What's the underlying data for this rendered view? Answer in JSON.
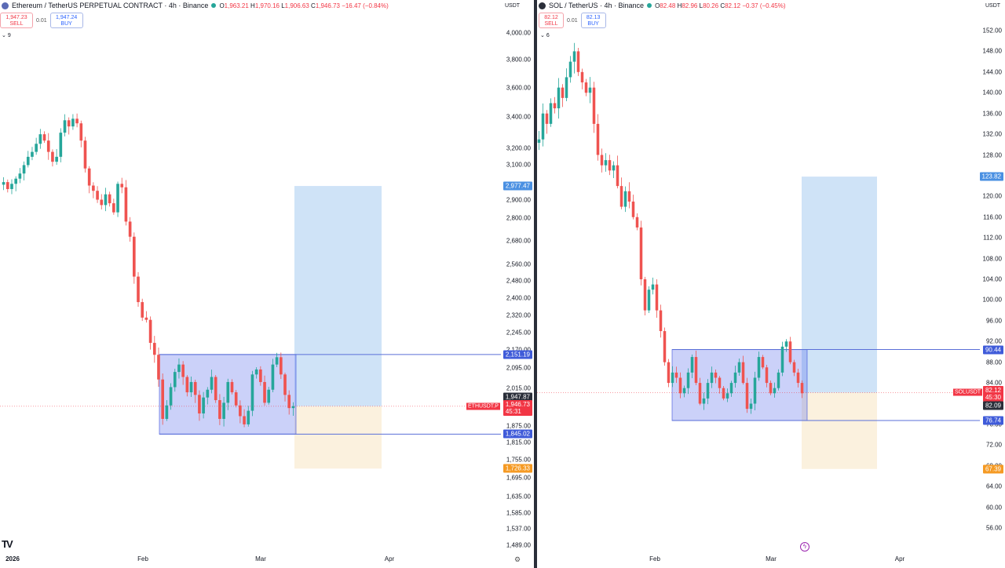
{
  "left": {
    "title": "Ethereum / TetherUS PERPETUAL CONTRACT · 4h · Binance",
    "ohlc": {
      "o_label": "O",
      "o": "1,963.21",
      "h_label": "H",
      "h": "1,970.16",
      "l_label": "L",
      "l": "1,906.63",
      "c_label": "C",
      "c": "1,946.73",
      "chg": "−16.47 (−0.84%)"
    },
    "sell_price": "1,947.23",
    "sell_label": "SELL",
    "buy_price": "1,947.24",
    "buy_label": "BUY",
    "spread": "0.01",
    "indicators_count": "9",
    "quote": "USDT",
    "symbol_tag": "ETHUSDT.P",
    "y_ticks": [
      "4,000.00",
      "3,800.00",
      "3,600.00",
      "3,400.00",
      "3,200.00",
      "3,100.00",
      "2,900.00",
      "2,800.00",
      "2,680.00",
      "2,560.00",
      "2,480.00",
      "2,400.00",
      "2,320.00",
      "2,245.00",
      "2,170.00",
      "2,095.00",
      "2,015.00",
      "1,875.00",
      "1,815.00",
      "1,755.00",
      "1,695.00",
      "1,635.00",
      "1,585.00",
      "1,537.00",
      "1,489.00"
    ],
    "x_ticks": [
      "2026",
      "Feb",
      "Mar",
      "Apr"
    ],
    "tags": {
      "target": "2,977.47",
      "range_high": "2,151.19",
      "last_upper": "1,947.87",
      "last": "1,946.73",
      "countdown": "45:31",
      "range_low": "1,845.02",
      "stop": "1,726.33"
    },
    "colors": {
      "target": "#4a90e2",
      "range": "#3f5bd9",
      "last": "#f23645",
      "dark": "#2a2e39",
      "stop": "#f59a23"
    },
    "chart_data": {
      "type": "candlestick",
      "series_close": [
        3000,
        2960,
        2990,
        3020,
        3050,
        3100,
        3150,
        3180,
        3230,
        3290,
        3250,
        3180,
        3120,
        3150,
        3300,
        3380,
        3340,
        3390,
        3360,
        3250,
        3080,
        2980,
        2950,
        2900,
        2870,
        2930,
        2880,
        2830,
        2990,
        2970,
        2780,
        2700,
        2500,
        2380,
        2310,
        2300,
        2200,
        2150,
        2050,
        1900,
        1950,
        2020,
        2080,
        2110,
        2060,
        2000,
        2040,
        1990,
        1920,
        1980,
        2010,
        2060,
        1970,
        1900,
        1960,
        2040,
        2000,
        1950,
        1910,
        1880,
        1930,
        2070,
        2090,
        2040,
        1960,
        2010,
        2110,
        2140,
        2070,
        1990,
        1940,
        1947
      ],
      "ylim": [
        1489,
        4000
      ],
      "range_box": {
        "top": 2151.19,
        "bottom": 1845.02
      },
      "target": 2977.47,
      "stop": 1726.33,
      "entry": 1946.73
    }
  },
  "right": {
    "title": "SOL / TetherUS · 4h · Binance",
    "ohlc": {
      "o_label": "O",
      "o": "82.48",
      "h_label": "H",
      "h": "82.96",
      "l_label": "L",
      "l": "80.26",
      "c_label": "C",
      "c": "82.12",
      "chg": "−0.37 (−0.45%)"
    },
    "sell_price": "82.12",
    "sell_label": "SELL",
    "buy_price": "82.13",
    "buy_label": "BUY",
    "spread": "0.01",
    "indicators_count": "6",
    "quote": "USDT",
    "symbol_tag": "SOLUSDT",
    "y_ticks": [
      "152.00",
      "148.00",
      "144.00",
      "140.00",
      "136.00",
      "132.00",
      "128.00",
      "124.00",
      "120.00",
      "116.00",
      "112.00",
      "108.00",
      "104.00",
      "100.00",
      "96.00",
      "92.00",
      "88.00",
      "84.00",
      "80.00",
      "76.00",
      "72.00",
      "68.00",
      "64.00",
      "60.00",
      "56.00"
    ],
    "x_ticks": [
      "Feb",
      "Mar",
      "Apr"
    ],
    "tags": {
      "target": "123.82",
      "range_high": "90.44",
      "last": "82.12",
      "countdown": "45:30",
      "last_lower": "82.09",
      "range_low": "76.74",
      "stop": "67.39"
    },
    "colors": {
      "target": "#4a90e2",
      "range": "#3f5bd9",
      "last": "#f23645",
      "dark": "#2a2e39",
      "stop": "#f59a23"
    },
    "chart_data": {
      "type": "candlestick",
      "series_close": [
        131,
        136,
        134,
        138,
        137,
        141,
        139,
        143,
        146,
        148,
        144,
        142,
        140,
        141,
        134,
        128,
        126,
        127,
        125,
        126,
        122,
        118,
        121,
        119,
        116,
        114,
        104,
        98,
        102,
        103,
        98,
        94,
        88,
        84,
        86,
        85,
        82,
        83,
        86,
        89,
        84,
        80,
        81,
        84,
        86,
        85,
        83,
        81,
        82,
        84,
        86,
        88,
        84,
        79,
        80,
        85,
        89,
        87,
        84,
        82,
        83,
        86,
        91,
        92,
        88,
        86,
        84,
        82
      ],
      "ylim": [
        56,
        152
      ],
      "range_box": {
        "top": 90.44,
        "bottom": 76.74
      },
      "target": 123.82,
      "stop": 67.39,
      "entry": 82.12
    }
  }
}
